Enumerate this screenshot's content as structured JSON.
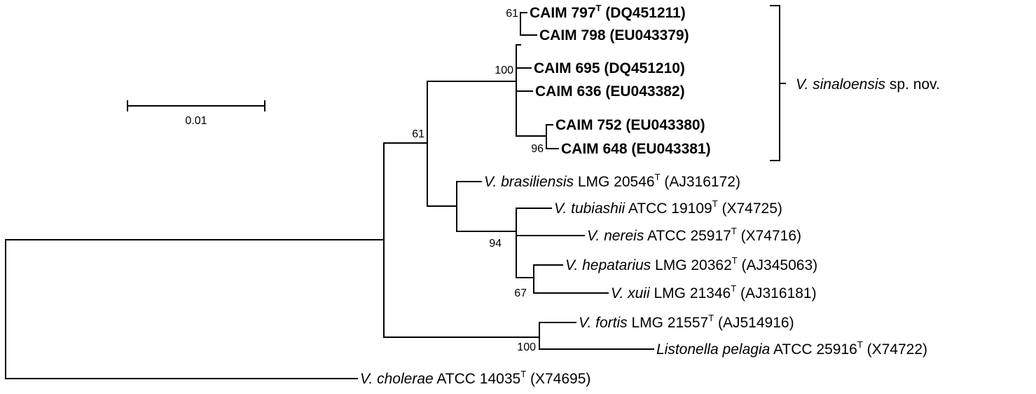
{
  "scale_bar": {
    "label": "0.01"
  },
  "clade_bracket": {
    "species": "V. sinaloensis",
    "suffix": " sp. nov."
  },
  "taxa": [
    {
      "id": "caim797",
      "bold": true,
      "species": "",
      "strain": "CAIM 797",
      "sup": "T",
      "accession": " (DQ451211)"
    },
    {
      "id": "caim798",
      "bold": true,
      "species": "",
      "strain": "CAIM 798 (EU043379)",
      "sup": "",
      "accession": ""
    },
    {
      "id": "caim695",
      "bold": true,
      "species": "",
      "strain": "CAIM 695 (DQ451210)",
      "sup": "",
      "accession": ""
    },
    {
      "id": "caim636",
      "bold": true,
      "species": "",
      "strain": "CAIM 636 (EU043382)",
      "sup": "",
      "accession": ""
    },
    {
      "id": "caim752",
      "bold": true,
      "species": "",
      "strain": "CAIM 752 (EU043380)",
      "sup": "",
      "accession": ""
    },
    {
      "id": "caim648",
      "bold": true,
      "species": "",
      "strain": "CAIM 648 (EU043381)",
      "sup": "",
      "accession": ""
    },
    {
      "id": "brasiliensis",
      "bold": false,
      "species": "V. brasiliensis",
      "strain": " LMG 20546",
      "sup": "T",
      "accession": " (AJ316172)"
    },
    {
      "id": "tubiashii",
      "bold": false,
      "species": "V. tubiashii",
      "strain": " ATCC 19109",
      "sup": "T",
      "accession": " (X74725)"
    },
    {
      "id": "nereis",
      "bold": false,
      "species": "V. nereis",
      "strain": " ATCC 25917",
      "sup": "T",
      "accession": " (X74716)"
    },
    {
      "id": "hepatarius",
      "bold": false,
      "species": "V. hepatarius",
      "strain": " LMG 20362",
      "sup": "T",
      "accession": " (AJ345063)"
    },
    {
      "id": "xuii",
      "bold": false,
      "species": "V. xuii",
      "strain": " LMG 21346",
      "sup": "T",
      "accession": " (AJ316181)"
    },
    {
      "id": "fortis",
      "bold": false,
      "species": "V. fortis",
      "strain": " LMG 21557",
      "sup": "T",
      "accession": " (AJ514916)"
    },
    {
      "id": "pelagia",
      "bold": false,
      "species": "Listonella pelagia",
      "strain": " ATCC 25916",
      "sup": "T",
      "accession": " (X74722)"
    },
    {
      "id": "cholerae",
      "bold": false,
      "species": "V. cholerae",
      "strain": " ATCC 14035",
      "sup": "T",
      "accession": " (X74695)"
    }
  ],
  "bootstrap": {
    "caim797_798": "61",
    "sinaloensis_clade": "100",
    "caim752_648": "96",
    "main_group": "61",
    "tubiashii_group": "94",
    "hepatarius_xuii": "67",
    "fortis_pelagia": "100"
  }
}
